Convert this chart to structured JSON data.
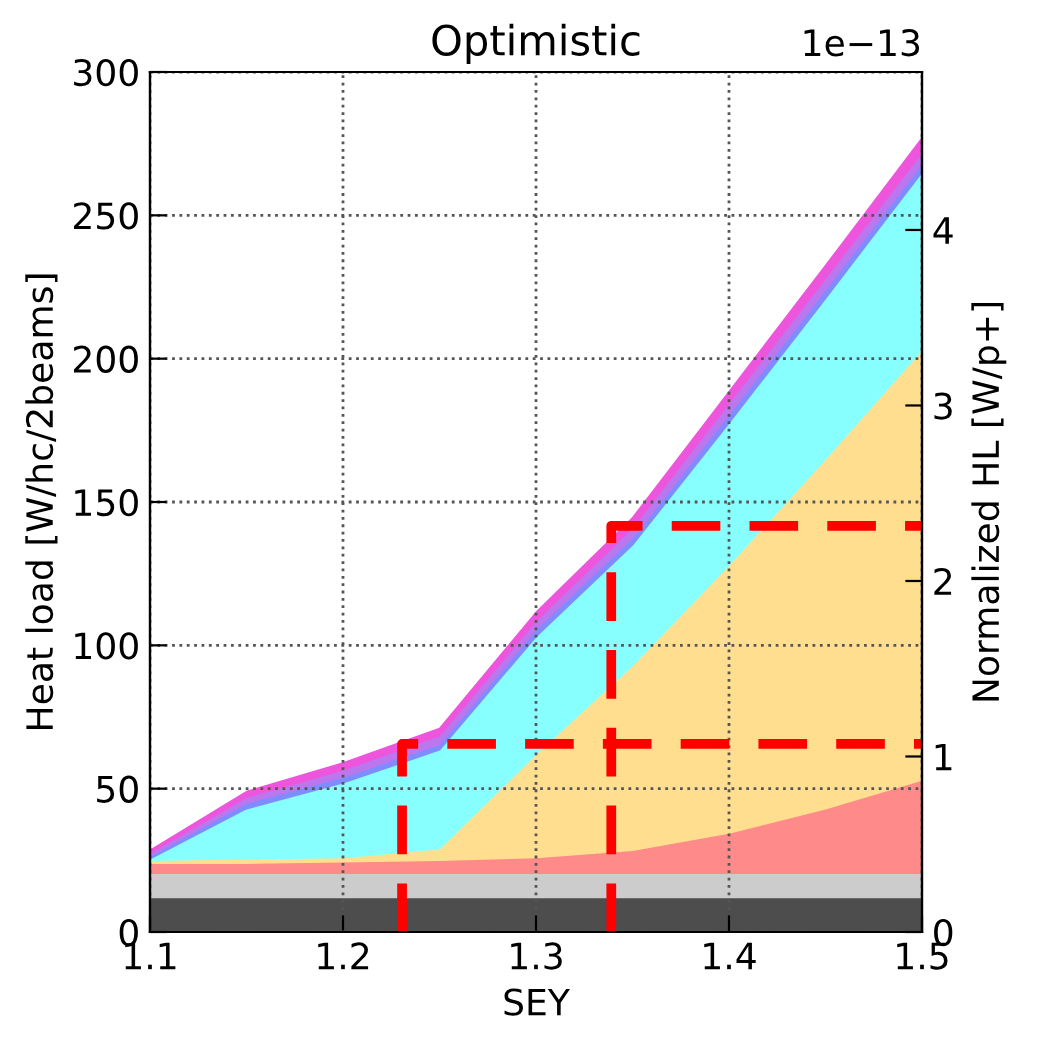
{
  "chart_data": {
    "type": "area",
    "stacked": true,
    "title": "Optimistic",
    "xlabel": "SEY",
    "ylabel": "Heat load [W/hc/2beams]",
    "y2label": "Normalized HL [W/p+]",
    "x": [
      1.1,
      1.15,
      1.2,
      1.25,
      1.3,
      1.35,
      1.4,
      1.45,
      1.5
    ],
    "series": [
      {
        "color": "#4d4d4d",
        "values": [
          12,
          12,
          12,
          12,
          12,
          12,
          12,
          12,
          12
        ]
      },
      {
        "color": "#cccccc",
        "values": [
          8.5,
          8.5,
          8.5,
          8.5,
          8.5,
          8.5,
          8.5,
          8.5,
          8.5
        ]
      },
      {
        "color": "#ff8a8a",
        "values": [
          3.5,
          3.5,
          4,
          4.5,
          5.5,
          8,
          14,
          22.5,
          32.5
        ]
      },
      {
        "color": "#ffdf8f",
        "values": [
          1,
          1.5,
          1.5,
          4,
          36,
          64.5,
          93.5,
          122,
          150
        ]
      },
      {
        "color": "#88ffff",
        "values": [
          0.5,
          17.5,
          26,
          34.5,
          41,
          42,
          49.5,
          56,
          62
        ]
      },
      {
        "color": "#7f8cff",
        "values": [
          1,
          2,
          2,
          2,
          2.5,
          2.5,
          3,
          3,
          3
        ]
      },
      {
        "color": "#bb77ee",
        "values": [
          1,
          2,
          2.5,
          3,
          3,
          3.5,
          4,
          4,
          4
        ]
      },
      {
        "color": "#ee55dd",
        "values": [
          1,
          2,
          2.5,
          2.5,
          3,
          3.5,
          4,
          4.5,
          5
        ]
      },
      {
        "type": "line",
        "color": "#ff0000",
        "line_style": "dashed",
        "x": [
          1.2306,
          1.2306,
          1.5
        ],
        "values": [
          0,
          65.6,
          65.6
        ]
      },
      {
        "type": "line",
        "color": "#ff0000",
        "line_style": "dashed",
        "x": [
          1.339,
          1.339,
          1.5
        ],
        "values": [
          0,
          141.7,
          141.7
        ]
      }
    ],
    "xlim": [
      1.1,
      1.5
    ],
    "xticks": [
      1.1,
      1.2,
      1.3,
      1.4,
      1.5
    ],
    "ylim": [
      0,
      300
    ],
    "yticks": [
      0,
      50,
      100,
      150,
      200,
      250,
      300
    ],
    "y2lim": [
      0,
      4.9
    ],
    "y2ticks": [
      0,
      1,
      2,
      3,
      4
    ],
    "annotations": [
      "1e−13"
    ],
    "grid": true,
    "legend": false
  }
}
